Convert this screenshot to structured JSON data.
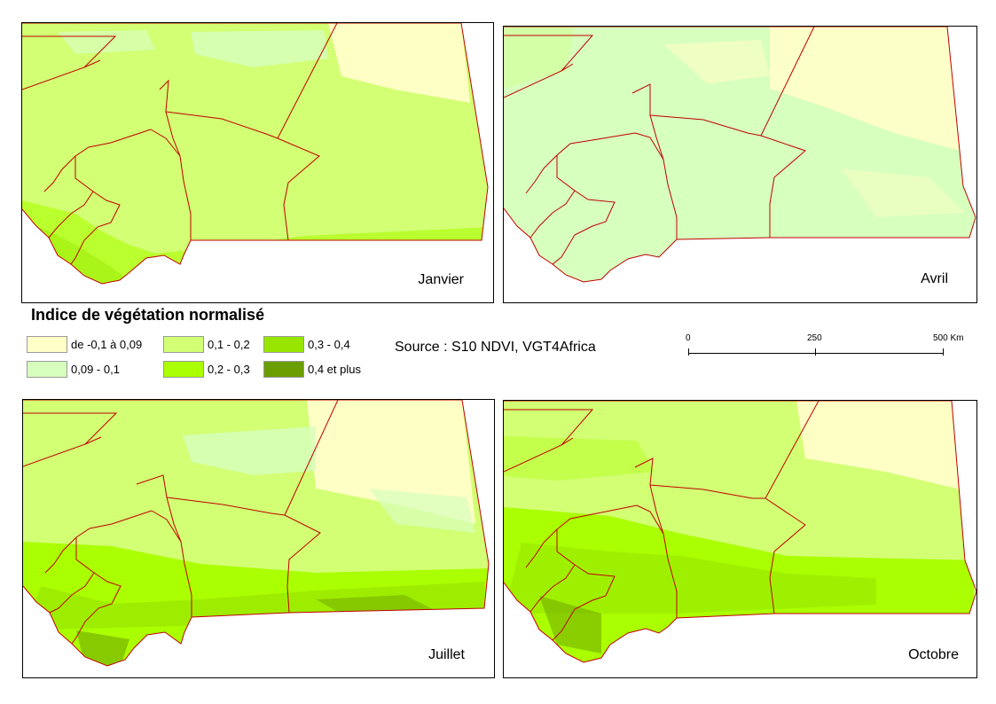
{
  "maps": [
    {
      "month": "Janvier"
    },
    {
      "month": "Avril"
    },
    {
      "month": "Juillet"
    },
    {
      "month": "Octobre"
    }
  ],
  "legend": {
    "title": "Indice de végétation normalisé",
    "classes": [
      {
        "label": "de -0,1 à  0,09",
        "color": "#ffffc8"
      },
      {
        "label": "0,09 - 0,1",
        "color": "#d7ffbe"
      },
      {
        "label": "0,1 - 0,2",
        "color": "#d2ff73"
      },
      {
        "label": "0,2 - 0,3",
        "color": "#aaff00"
      },
      {
        "label": "0,3 - 0,4",
        "color": "#98e600"
      },
      {
        "label": "0,4 et plus",
        "color": "#6b9e00"
      }
    ]
  },
  "source": "Source : S10 NDVI, VGT4Africa",
  "scale": {
    "labels": [
      "0",
      "250",
      "500 Km"
    ]
  },
  "colors": {
    "border": "#c00000",
    "outside": "#ffffff"
  }
}
